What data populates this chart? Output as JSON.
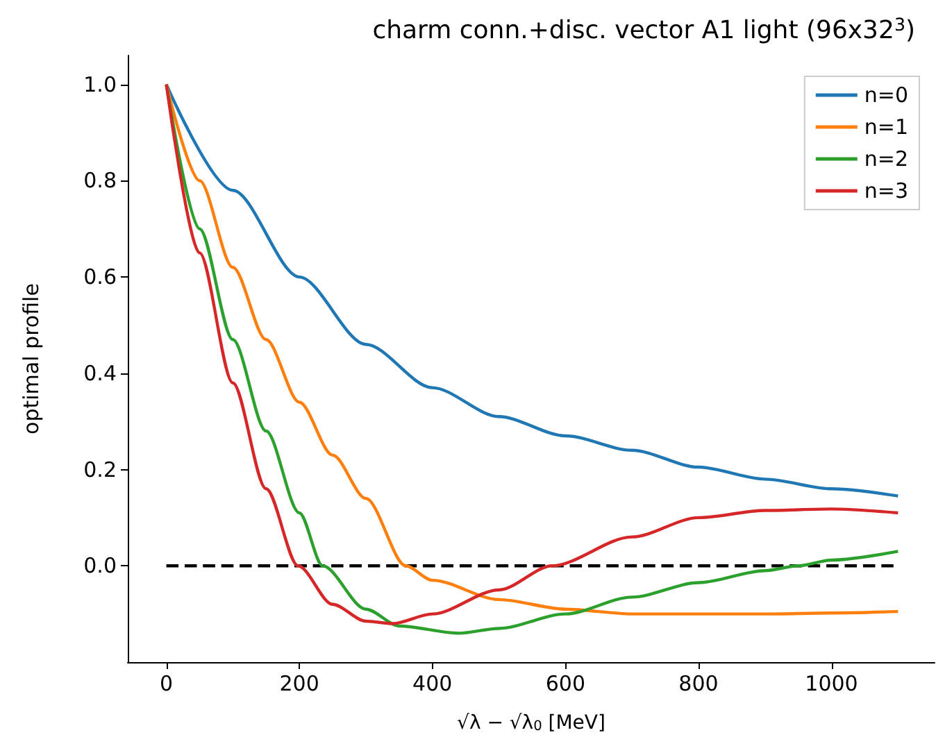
{
  "chart_data": {
    "type": "line",
    "title": "charm conn.+disc. vector A1 light (96x32$^{3}$)",
    "xlabel": "√λ − √λ$_{0}$ [MeV]",
    "ylabel": "optimal profile",
    "xlim": [
      -58,
      1155
    ],
    "xticks": [
      0,
      200,
      400,
      600,
      800,
      1000
    ],
    "ylim": [
      -0.2,
      1.06
    ],
    "yticks": [
      {
        "value": 0,
        "label": "0.0"
      },
      {
        "value": 0.2,
        "label": "0.2"
      },
      {
        "value": 0.4,
        "label": "0.4"
      },
      {
        "value": 0.6,
        "label": "0.6"
      },
      {
        "value": 0.8,
        "label": "0.8"
      },
      {
        "value": 1,
        "label": "1.0"
      }
    ],
    "grid": false,
    "legend": "top right",
    "marker": "none",
    "series": [
      {
        "name": "n=0",
        "color": "#1f77b4",
        "x": [
          0,
          100,
          200,
          300,
          400,
          500,
          600,
          700,
          800,
          900,
          1000,
          1100
        ],
        "values": [
          1.0,
          0.78,
          0.6,
          0.46,
          0.37,
          0.31,
          0.27,
          0.24,
          0.205,
          0.18,
          0.16,
          0.145
        ]
      },
      {
        "name": "n=1",
        "color": "#ff7f0e",
        "x": [
          0,
          50,
          100,
          150,
          200,
          250,
          300,
          360,
          400,
          500,
          600,
          700,
          800,
          900,
          1000,
          1100
        ],
        "values": [
          1.0,
          0.8,
          0.62,
          0.47,
          0.34,
          0.23,
          0.14,
          0.0,
          -0.03,
          -0.07,
          -0.09,
          -0.1,
          -0.1,
          -0.1,
          -0.098,
          -0.095
        ]
      },
      {
        "name": "n=2",
        "color": "#2ca02c",
        "x": [
          0,
          50,
          100,
          150,
          200,
          235,
          300,
          350,
          440,
          500,
          600,
          700,
          800,
          900,
          950,
          1000,
          1100
        ],
        "values": [
          1.0,
          0.7,
          0.47,
          0.28,
          0.11,
          0.0,
          -0.09,
          -0.125,
          -0.14,
          -0.13,
          -0.1,
          -0.065,
          -0.035,
          -0.01,
          0.0,
          0.012,
          0.03
        ]
      },
      {
        "name": "n=3",
        "color": "#d62728",
        "x": [
          0,
          50,
          100,
          150,
          198,
          250,
          300,
          340,
          400,
          500,
          580,
          700,
          800,
          900,
          1000,
          1100
        ],
        "values": [
          1.0,
          0.65,
          0.38,
          0.16,
          0.0,
          -0.08,
          -0.115,
          -0.12,
          -0.1,
          -0.05,
          0.0,
          0.06,
          0.1,
          0.115,
          0.118,
          0.11
        ]
      },
      {
        "color": "#000000",
        "line_style": "dashed",
        "x": [
          0,
          1100
        ],
        "values": [
          0,
          0
        ]
      }
    ]
  }
}
